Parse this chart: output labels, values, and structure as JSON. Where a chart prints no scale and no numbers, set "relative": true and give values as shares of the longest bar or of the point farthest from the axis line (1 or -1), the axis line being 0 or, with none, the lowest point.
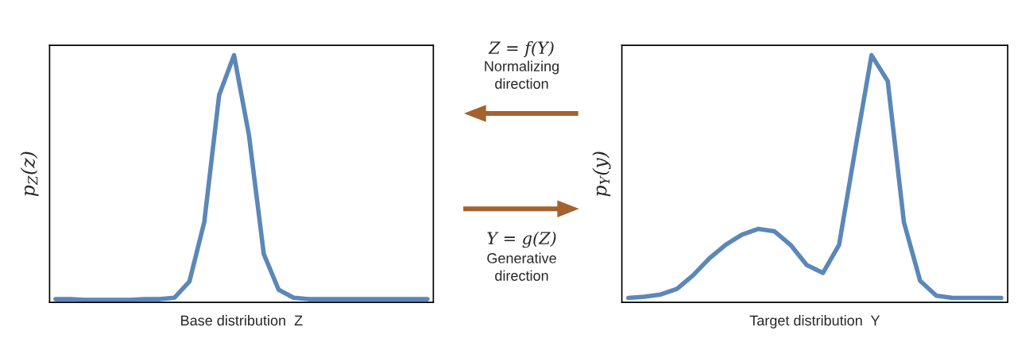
{
  "chart_data": [
    {
      "type": "line",
      "relative": true,
      "color": "#5b87b9",
      "ylabel": "p$_{Z}$(z)",
      "xlabel": "Base distribution  Z",
      "categories": [
        null,
        null,
        null,
        null,
        null,
        null,
        null,
        null,
        null,
        null,
        null,
        null,
        null,
        null,
        null,
        null,
        null,
        null,
        null,
        null,
        null,
        null,
        null,
        null,
        null,
        null
      ],
      "values": [
        0.013,
        0.013,
        0.01,
        0.01,
        0.01,
        0.01,
        0.013,
        0.013,
        0.019,
        0.084,
        0.325,
        0.839,
        1,
        0.678,
        0.196,
        0.051,
        0.019,
        0.013,
        0.013,
        0.013,
        0.013,
        0.013,
        0.013,
        0.013,
        0.013,
        0.013
      ]
    },
    {
      "type": "other",
      "annotations": [
        "Z = f(Y)",
        "Normalizing\ndirection",
        "Y = g(Z)",
        "Generative\ndirection"
      ]
    },
    {
      "type": "line",
      "relative": true,
      "color": "#5b87b9",
      "ylabel": "p$_{Y}$(y)",
      "xlabel": "Target distribution  Y",
      "categories": [
        null,
        null,
        null,
        null,
        null,
        null,
        null,
        null,
        null,
        null,
        null,
        null,
        null,
        null,
        null,
        null,
        null,
        null,
        null,
        null,
        null,
        null,
        null,
        null
      ],
      "values": [
        0.018,
        0.023,
        0.032,
        0.055,
        0.11,
        0.178,
        0.233,
        0.274,
        0.297,
        0.288,
        0.233,
        0.151,
        0.119,
        0.233,
        0.621,
        1,
        0.895,
        0.324,
        0.087,
        0.027,
        0.018,
        0.018,
        0.018,
        0.018
      ]
    }
  ]
}
